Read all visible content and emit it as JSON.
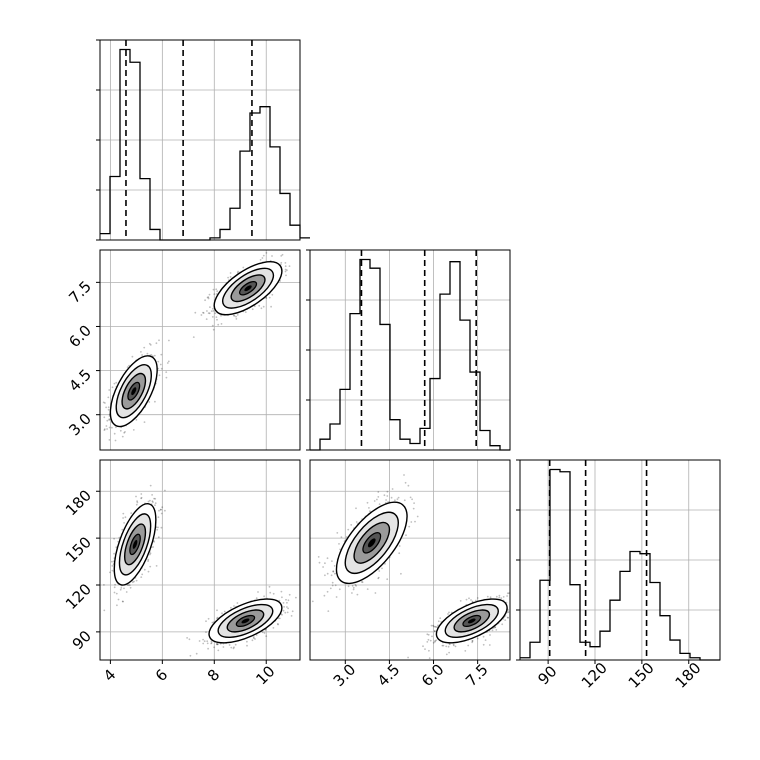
{
  "chart_data": {
    "type": "corner",
    "grid": true,
    "parameters": [
      {
        "range": [
          3.6,
          11.3
        ],
        "ticks": [
          4,
          6,
          8,
          10
        ],
        "tick_labels": [
          "4",
          "6",
          "8",
          "10"
        ],
        "quantiles": [
          4.6,
          6.8,
          9.45
        ]
      },
      {
        "range": [
          1.8,
          8.6
        ],
        "ticks": [
          3.0,
          4.5,
          6.0,
          7.5
        ],
        "tick_labels": [
          "3.0",
          "4.5",
          "6.0",
          "7.5"
        ],
        "quantiles": [
          3.55,
          5.7,
          7.45
        ]
      },
      {
        "range": [
          72,
          200
        ],
        "ticks": [
          90,
          120,
          150,
          180
        ],
        "tick_labels": [
          "90",
          "120",
          "150",
          "180"
        ],
        "quantiles": [
          91,
          114,
          153
        ]
      }
    ],
    "histograms": [
      {
        "bin_start": 3.6,
        "bin_width": 0.385,
        "counts": [
          0.03,
          0.3,
          0.9,
          0.84,
          0.29,
          0.05,
          0.0,
          0.0,
          0.0,
          0.0,
          0.0,
          0.01,
          0.05,
          0.15,
          0.42,
          0.6,
          0.63,
          0.44,
          0.22,
          0.07,
          0.01
        ]
      },
      {
        "bin_start": 1.8,
        "bin_width": 0.34,
        "counts": [
          0.0,
          0.05,
          0.12,
          0.28,
          0.63,
          0.88,
          0.84,
          0.58,
          0.14,
          0.05,
          0.03,
          0.1,
          0.33,
          0.72,
          0.87,
          0.6,
          0.36,
          0.09,
          0.02,
          0.0
        ]
      },
      {
        "bin_start": 72,
        "bin_width": 6.4,
        "counts": [
          0.01,
          0.08,
          0.36,
          0.86,
          0.85,
          0.34,
          0.08,
          0.06,
          0.13,
          0.27,
          0.4,
          0.49,
          0.48,
          0.35,
          0.2,
          0.09,
          0.03,
          0.01,
          0.0,
          0.0
        ]
      }
    ],
    "scatter_panels": [
      {
        "x_param": 0,
        "y_param": 1,
        "clusters": [
          {
            "mean": [
              4.9,
              3.8
            ],
            "sd": [
              0.45,
              0.6
            ],
            "rho": 0.6
          },
          {
            "mean": [
              9.3,
              7.3
            ],
            "sd": [
              0.65,
              0.45
            ],
            "rho": 0.65
          }
        ]
      },
      {
        "x_param": 0,
        "y_param": 2,
        "clusters": [
          {
            "mean": [
              4.95,
              146
            ],
            "sd": [
              0.4,
              13
            ],
            "rho": 0.6
          },
          {
            "mean": [
              9.2,
              97
            ],
            "sd": [
              0.7,
              7
            ],
            "rho": 0.6
          }
        ]
      },
      {
        "x_param": 1,
        "y_param": 2,
        "clusters": [
          {
            "mean": [
              3.9,
              147
            ],
            "sd": [
              0.6,
              13
            ],
            "rho": 0.65
          },
          {
            "mean": [
              7.3,
              97
            ],
            "sd": [
              0.6,
              7
            ],
            "rho": 0.6
          }
        ]
      }
    ]
  }
}
